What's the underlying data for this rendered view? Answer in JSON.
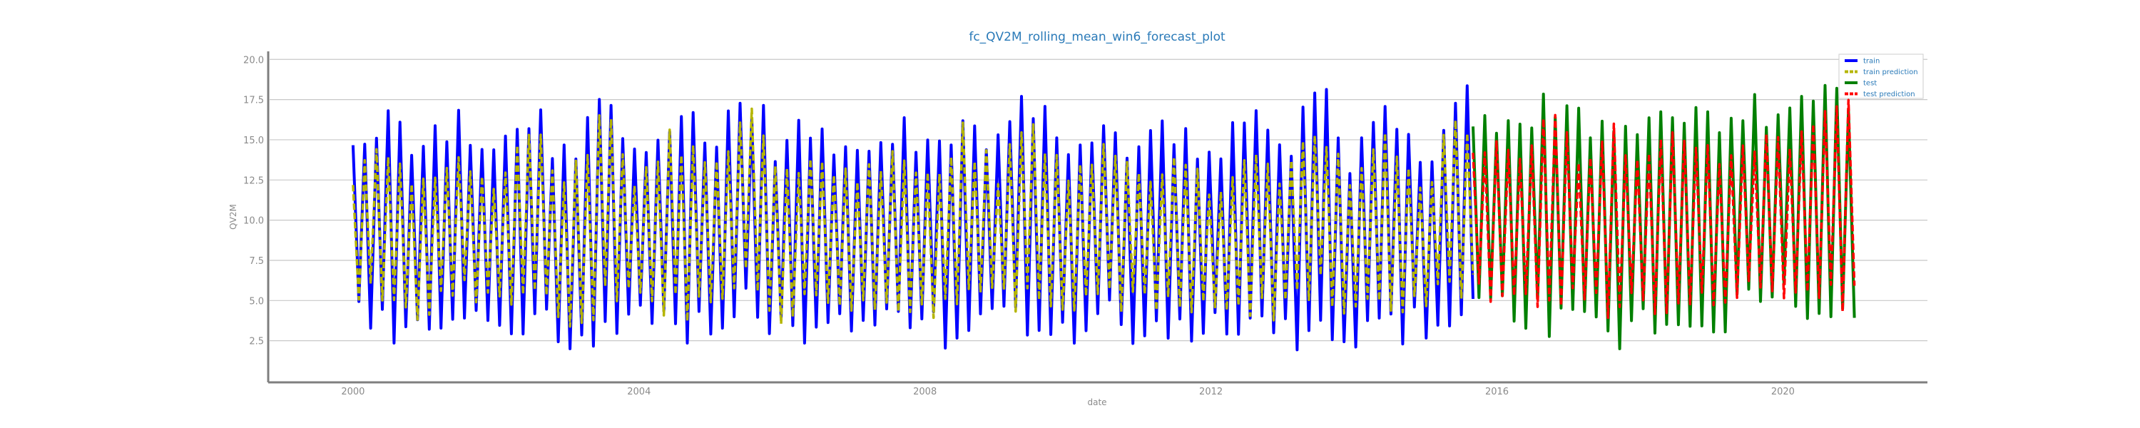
{
  "chart_data": {
    "type": "line",
    "title": "fc_QV2M_rolling_mean_win6_forecast_plot",
    "xlabel": "date",
    "ylabel": "QV2M",
    "xlim": [
      "1998-11-01",
      "2022-01-01"
    ],
    "ylim": [
      0.0,
      20.5
    ],
    "x_ticks": [
      "2000",
      "2004",
      "2008",
      "2012",
      "2016",
      "2020"
    ],
    "y_ticks": [
      "2.5",
      "5.0",
      "7.5",
      "10.0",
      "12.5",
      "15.0",
      "17.5",
      "20.0"
    ],
    "grid": "horizontal",
    "legend_position": "top-right",
    "series": [
      {
        "name": "train",
        "color": "#0000ff",
        "style": "solid",
        "start": "2000-01-01",
        "end": "2015-09-01",
        "x": [
          "2000-01",
          "2000-07",
          "2001-01",
          "2001-07",
          "2002-01",
          "2002-07",
          "2003-01",
          "2003-07",
          "2004-01",
          "2004-07",
          "2005-01",
          "2005-07",
          "2006-01",
          "2006-07",
          "2007-01",
          "2007-07",
          "2008-01",
          "2008-07",
          "2009-01",
          "2009-07",
          "2010-01",
          "2010-07",
          "2011-01",
          "2011-07",
          "2012-01",
          "2012-07",
          "2013-01",
          "2013-07",
          "2014-01",
          "2014-07",
          "2015-01",
          "2015-07"
        ],
        "upper": [
          16.5,
          17.5,
          15.0,
          18.0,
          14.5,
          18.2,
          15.0,
          18.5,
          14.8,
          18.0,
          15.5,
          19.5,
          15.0,
          18.0,
          14.5,
          17.5,
          15.0,
          18.2,
          15.5,
          19.2,
          14.8,
          18.5,
          15.0,
          17.0,
          14.5,
          17.5,
          15.0,
          19.5,
          14.8,
          18.2,
          15.0,
          19.8
        ],
        "lower": [
          3.0,
          2.5,
          1.5,
          3.0,
          2.0,
          2.5,
          1.5,
          2.0,
          3.0,
          1.8,
          2.0,
          3.5,
          1.8,
          2.0,
          2.5,
          1.8,
          2.0,
          1.5,
          2.5,
          2.0,
          1.8,
          2.5,
          2.0,
          2.0,
          2.5,
          2.0,
          1.5,
          2.5,
          1.2,
          2.0,
          2.5,
          3.0
        ]
      },
      {
        "name": "train prediction",
        "color": "#b5b500",
        "style": "dashed",
        "start": "2000-01-01",
        "end": "2015-09-01",
        "x": [
          "2000-01",
          "2000-07",
          "2001-01",
          "2001-07",
          "2002-01",
          "2002-07",
          "2003-01",
          "2003-07",
          "2004-01",
          "2004-07",
          "2005-01",
          "2005-07",
          "2006-01",
          "2006-07",
          "2007-01",
          "2007-07",
          "2008-01",
          "2008-07",
          "2009-01",
          "2009-07",
          "2010-01",
          "2010-07",
          "2011-01",
          "2011-07",
          "2012-01",
          "2012-07",
          "2013-01",
          "2013-07",
          "2014-01",
          "2014-07",
          "2015-01",
          "2015-07"
        ],
        "upper": [
          13.5,
          15.0,
          13.0,
          15.5,
          12.5,
          16.5,
          13.0,
          17.5,
          12.8,
          16.5,
          13.5,
          18.5,
          13.0,
          16.0,
          12.5,
          15.5,
          13.0,
          16.5,
          13.5,
          18.0,
          12.8,
          16.5,
          13.0,
          15.5,
          12.5,
          15.5,
          13.0,
          17.5,
          12.8,
          16.5,
          13.0,
          17.5
        ],
        "lower": [
          4.5,
          5.0,
          3.5,
          4.5,
          4.0,
          5.0,
          3.0,
          4.0,
          4.5,
          3.5,
          4.0,
          5.0,
          3.5,
          4.5,
          4.0,
          3.5,
          4.0,
          3.5,
          4.5,
          4.0,
          3.5,
          4.5,
          4.0,
          4.0,
          4.5,
          4.0,
          3.5,
          4.5,
          3.0,
          4.0,
          4.5,
          5.0
        ]
      },
      {
        "name": "test",
        "color": "#008000",
        "style": "solid",
        "start": "2015-09-01",
        "end": "2020-12-31",
        "x": [
          "2015-09",
          "2016-03",
          "2016-09",
          "2017-03",
          "2017-09",
          "2018-03",
          "2018-09",
          "2019-03",
          "2019-09",
          "2020-03",
          "2020-09"
        ],
        "upper": [
          18.0,
          17.5,
          19.0,
          17.0,
          18.0,
          16.5,
          18.5,
          17.0,
          18.0,
          18.0,
          18.5
        ],
        "lower": [
          4.0,
          3.0,
          2.5,
          3.5,
          1.5,
          2.5,
          3.0,
          2.5,
          3.5,
          4.0,
          2.0
        ]
      },
      {
        "name": "test prediction",
        "color": "#ff0000",
        "style": "dashed",
        "start": "2015-09-01",
        "end": "2020-12-31",
        "x": [
          "2015-09",
          "2016-03",
          "2016-09",
          "2017-03",
          "2017-09",
          "2018-03",
          "2018-09",
          "2019-03",
          "2019-09",
          "2020-03",
          "2020-09"
        ],
        "upper": [
          16.0,
          15.0,
          17.5,
          15.0,
          16.5,
          14.5,
          17.0,
          15.0,
          16.0,
          16.5,
          17.5
        ],
        "lower": [
          5.0,
          4.5,
          4.0,
          5.0,
          3.5,
          4.0,
          4.5,
          4.0,
          5.0,
          5.0,
          4.0
        ]
      }
    ]
  }
}
